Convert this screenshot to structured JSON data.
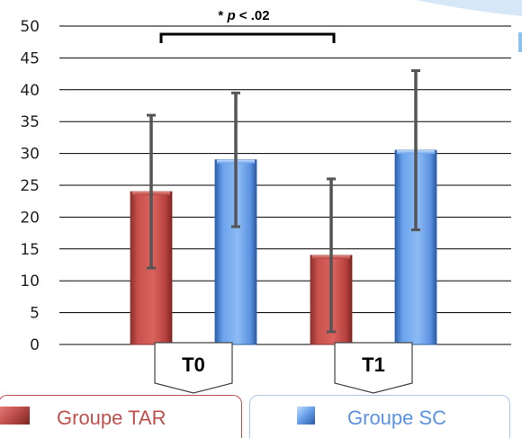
{
  "chart_data": {
    "type": "bar",
    "categories": [
      "T0",
      "T1"
    ],
    "series": [
      {
        "name": "Groupe TAR",
        "values": [
          24,
          14
        ],
        "error_low": [
          12,
          2
        ],
        "error_high": [
          36,
          26
        ],
        "color": "#c0504d"
      },
      {
        "name": "Groupe SC",
        "values": [
          29,
          30.5
        ],
        "error_low": [
          18.5,
          18
        ],
        "error_high": [
          39.5,
          43
        ],
        "color": "#4f8fe0"
      }
    ],
    "yticks": [
      "0",
      "5",
      "10",
      "15",
      "20",
      "25",
      "30",
      "35",
      "40",
      "45",
      "50"
    ],
    "ylim": [
      0,
      50
    ],
    "grid": true,
    "legend_position": "bottom",
    "annotation": {
      "prefix": "* ",
      "p": "p",
      "rest": " < .02"
    }
  }
}
